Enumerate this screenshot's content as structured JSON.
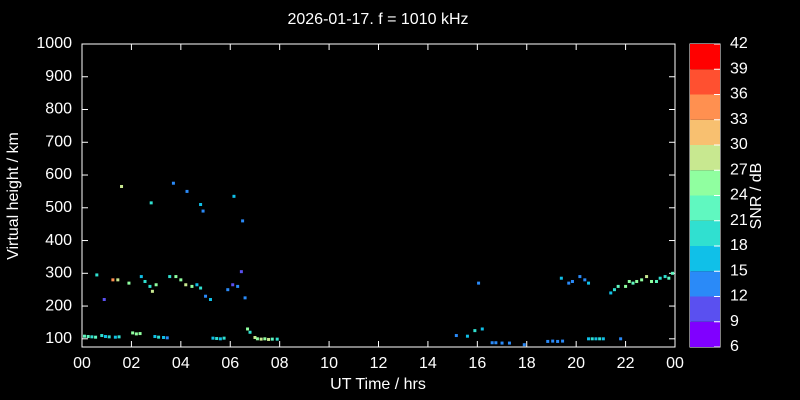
{
  "chart_data": {
    "type": "scatter",
    "title": "2026-01-17. f = 1010 kHz",
    "xlabel": "UT Time / hrs",
    "ylabel": "Virtual height / km",
    "xlim": [
      0,
      24
    ],
    "xticks": [
      {
        "value": 0,
        "label": "00"
      },
      {
        "value": 2,
        "label": "02"
      },
      {
        "value": 4,
        "label": "04"
      },
      {
        "value": 6,
        "label": "06"
      },
      {
        "value": 8,
        "label": "08"
      },
      10,
      12,
      14,
      16,
      18,
      20,
      22,
      {
        "value": 24,
        "label": "00"
      }
    ],
    "ylim": [
      75,
      1000
    ],
    "yticks": [
      100,
      200,
      300,
      400,
      500,
      600,
      700,
      800,
      900,
      1000
    ],
    "x": [
      0.1,
      0.25,
      0.4,
      0.55,
      0.8,
      0.95,
      1.1,
      1.35,
      1.5,
      2.05,
      2.2,
      2.35,
      2.95,
      3.1,
      3.3,
      3.45,
      5.3,
      5.45,
      5.6,
      5.75,
      7.0,
      7.1,
      7.25,
      7.4,
      7.55,
      7.7,
      7.9,
      0.6,
      0.9,
      1.25,
      1.45,
      1.9,
      2.4,
      2.55,
      2.75,
      2.85,
      3.0,
      3.55,
      3.8,
      4.0,
      4.2,
      4.45,
      4.65,
      4.8,
      5.0,
      5.2,
      5.9,
      6.1,
      6.3,
      6.45,
      6.6,
      6.7,
      6.8,
      1.6,
      2.8,
      3.7,
      4.25,
      4.8,
      4.9,
      6.15,
      6.5,
      15.15,
      15.6,
      15.9,
      16.05,
      16.2,
      16.6,
      16.75,
      17.0,
      17.3,
      17.9,
      18.85,
      19.05,
      19.25,
      19.45,
      19.4,
      19.7,
      19.85,
      20.15,
      20.35,
      20.5,
      20.5,
      20.65,
      20.8,
      20.95,
      21.1,
      21.4,
      21.55,
      21.7,
      21.8,
      22.0,
      22.15,
      22.3,
      22.45,
      22.65,
      22.85,
      23.05,
      23.25,
      23.4,
      23.6,
      23.75,
      23.9
    ],
    "values": [
      108,
      107,
      106,
      105,
      110,
      107,
      106,
      105,
      106,
      118,
      115,
      116,
      107,
      105,
      104,
      103,
      102,
      101,
      100,
      102,
      104,
      100,
      99,
      100,
      98,
      99,
      99,
      295,
      220,
      280,
      280,
      270,
      290,
      275,
      260,
      245,
      265,
      290,
      290,
      280,
      265,
      260,
      265,
      255,
      230,
      220,
      250,
      265,
      260,
      305,
      225,
      130,
      120,
      565,
      515,
      575,
      550,
      510,
      490,
      535,
      460,
      110,
      108,
      125,
      270,
      130,
      88,
      88,
      87,
      87,
      82,
      92,
      93,
      92,
      93,
      285,
      270,
      275,
      290,
      280,
      270,
      100,
      100,
      100,
      100,
      100,
      240,
      250,
      260,
      100,
      260,
      275,
      270,
      275,
      280,
      290,
      275,
      275,
      285,
      290,
      285,
      300
    ],
    "snr": [
      21,
      21,
      18,
      21,
      18,
      15,
      18,
      15,
      18,
      24,
      24,
      24,
      15,
      18,
      15,
      12,
      15,
      18,
      15,
      18,
      27,
      24,
      27,
      24,
      27,
      21,
      18,
      18,
      9,
      33,
      27,
      24,
      15,
      18,
      18,
      27,
      24,
      18,
      24,
      24,
      27,
      24,
      15,
      18,
      12,
      15,
      12,
      9,
      12,
      9,
      12,
      24,
      18,
      27,
      18,
      12,
      12,
      15,
      12,
      15,
      12,
      12,
      15,
      18,
      12,
      15,
      12,
      12,
      12,
      12,
      12,
      12,
      12,
      12,
      12,
      15,
      12,
      12,
      12,
      12,
      15,
      15,
      18,
      15,
      18,
      15,
      15,
      18,
      21,
      12,
      24,
      24,
      21,
      24,
      24,
      27,
      24,
      21,
      18,
      18,
      21,
      21
    ],
    "colorbar": {
      "label": "SNR / dB",
      "ticks": [
        6,
        9,
        12,
        15,
        18,
        21,
        24,
        27,
        30,
        33,
        36,
        39,
        42
      ],
      "colors": [
        "#8000ff",
        "#5a50f0",
        "#2a8af8",
        "#10c0e8",
        "#30e0d0",
        "#60f8c0",
        "#90ffa0",
        "#c8e890",
        "#f8c070",
        "#ff9050",
        "#ff5030",
        "#ff0000"
      ]
    }
  }
}
